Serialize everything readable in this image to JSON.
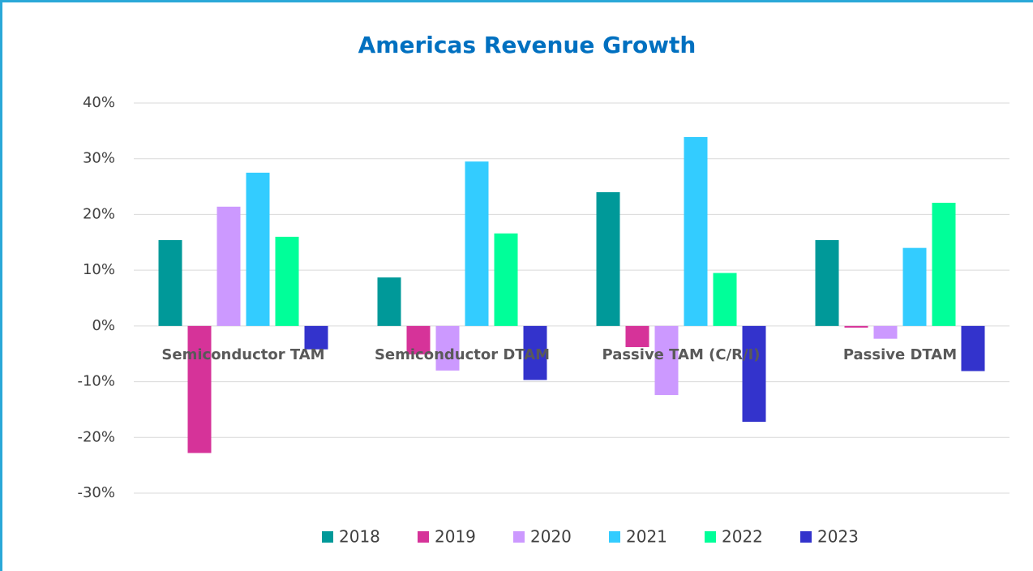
{
  "chart_data": {
    "type": "bar",
    "title": "Americas Revenue Growth",
    "categories": [
      "Semiconductor TAM",
      "Semiconductor DTAM",
      "Passive TAM (C/R/I)",
      "Passive DTAM"
    ],
    "series": [
      {
        "name": "2018",
        "color": "#009999",
        "values": [
          15.4,
          8.7,
          24.0,
          15.4
        ]
      },
      {
        "name": "2019",
        "color": "#d63399",
        "values": [
          -22.8,
          -5.1,
          -3.8,
          -0.3
        ]
      },
      {
        "name": "2020",
        "color": "#cc99ff",
        "values": [
          21.4,
          -8.0,
          -12.4,
          -2.3
        ]
      },
      {
        "name": "2021",
        "color": "#33ccff",
        "values": [
          27.5,
          29.5,
          33.9,
          14.0
        ]
      },
      {
        "name": "2022",
        "color": "#00ff99",
        "values": [
          16.0,
          16.6,
          9.5,
          22.1
        ]
      },
      {
        "name": "2023",
        "color": "#3333cc",
        "values": [
          -4.2,
          -9.7,
          -17.2,
          -8.1
        ]
      }
    ],
    "ylim": [
      -30,
      40
    ],
    "yticks": [
      {
        "value": -30,
        "label": "-30%"
      },
      {
        "value": -20,
        "label": "-20%"
      },
      {
        "value": -10,
        "label": "-10%"
      },
      {
        "value": 0,
        "label": "0%"
      },
      {
        "value": 10,
        "label": "10%"
      },
      {
        "value": 20,
        "label": "20%"
      },
      {
        "value": 30,
        "label": "30%"
      },
      {
        "value": 40,
        "label": "40%"
      }
    ],
    "grid": true,
    "legend": "bottom"
  }
}
